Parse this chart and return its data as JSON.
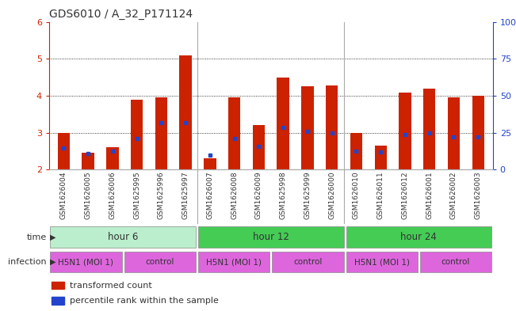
{
  "title": "GDS6010 / A_32_P171124",
  "samples": [
    "GSM1626004",
    "GSM1626005",
    "GSM1626006",
    "GSM1625995",
    "GSM1625996",
    "GSM1625997",
    "GSM1626007",
    "GSM1626008",
    "GSM1626009",
    "GSM1625998",
    "GSM1625999",
    "GSM1626000",
    "GSM1626010",
    "GSM1626011",
    "GSM1626012",
    "GSM1626001",
    "GSM1626002",
    "GSM1626003"
  ],
  "red_values": [
    3.0,
    2.45,
    2.6,
    3.9,
    3.95,
    5.1,
    2.3,
    3.95,
    3.2,
    4.48,
    4.25,
    4.28,
    3.0,
    2.65,
    4.08,
    4.2,
    3.95,
    4.0
  ],
  "blue_values": [
    2.58,
    2.43,
    2.5,
    2.85,
    3.27,
    3.27,
    2.38,
    2.85,
    2.62,
    3.13,
    3.03,
    3.0,
    2.5,
    2.47,
    2.95,
    2.98,
    2.88,
    2.88
  ],
  "ymin": 2.0,
  "ymax": 6.0,
  "yticks_left": [
    2,
    3,
    4,
    5,
    6
  ],
  "yticks_right": [
    0,
    25,
    50,
    75,
    100
  ],
  "bar_color": "#cc2200",
  "dot_color": "#2244cc",
  "bar_bottom": 2.0,
  "bar_width": 0.5,
  "time_boundaries": [
    {
      "start": 0,
      "end": 6,
      "label": "hour 6",
      "color": "#bbeecc"
    },
    {
      "start": 6,
      "end": 12,
      "label": "hour 12",
      "color": "#44cc55"
    },
    {
      "start": 12,
      "end": 18,
      "label": "hour 24",
      "color": "#44cc55"
    }
  ],
  "infection_groups": [
    {
      "start": 0,
      "end": 3,
      "label": "H5N1 (MOI 1)",
      "color": "#dd66dd"
    },
    {
      "start": 3,
      "end": 6,
      "label": "control",
      "color": "#dd66dd"
    },
    {
      "start": 6,
      "end": 9,
      "label": "H5N1 (MOI 1)",
      "color": "#dd66dd"
    },
    {
      "start": 9,
      "end": 12,
      "label": "control",
      "color": "#dd66dd"
    },
    {
      "start": 12,
      "end": 15,
      "label": "H5N1 (MOI 1)",
      "color": "#dd66dd"
    },
    {
      "start": 15,
      "end": 18,
      "label": "control",
      "color": "#dd66dd"
    }
  ],
  "bg_color": "#ffffff",
  "tick_color_left": "#cc2200",
  "tick_color_right": "#2244cc",
  "sample_fontsize": 6.5,
  "title_fontsize": 10,
  "legend_fontsize": 8,
  "row_label_fontsize": 8,
  "row_text_fontsize": 8.5,
  "inf_text_fontsize": 7.5
}
